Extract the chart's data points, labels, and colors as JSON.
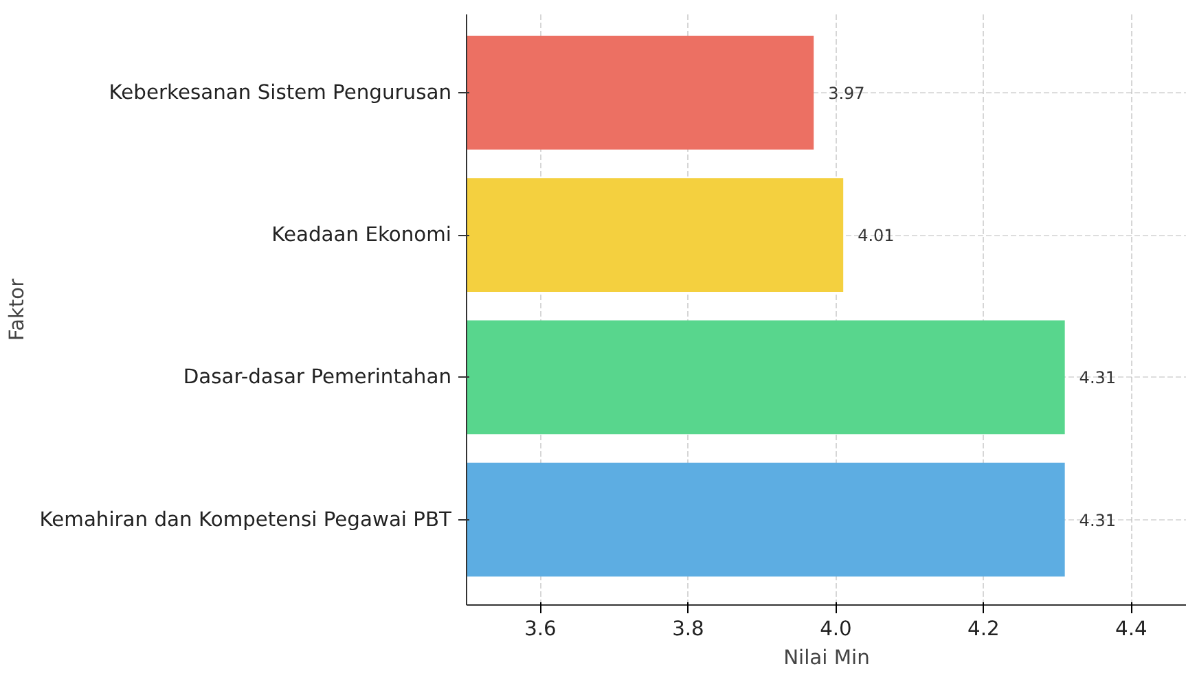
{
  "chart_data": {
    "type": "bar",
    "orientation": "horizontal",
    "xlabel": "Nilai Min",
    "ylabel": "Faktor",
    "categories": [
      "Keberkesanan Sistem Pengurusan",
      "Keadaan Ekonomi",
      "Dasar-dasar Pemerintahan",
      "Kemahiran dan Kompetensi Pegawai PBT"
    ],
    "values": [
      3.97,
      4.01,
      4.31,
      4.31
    ],
    "colors": [
      "#ec7063",
      "#f4d03f",
      "#58d68d",
      "#5dade2"
    ],
    "xlim": [
      3.5,
      4.475
    ],
    "xticks": [
      3.6,
      3.8,
      {
        "value": 4,
        "label": "4.0"
      },
      4.2,
      4.4
    ],
    "data_labels": true,
    "grid": true
  }
}
